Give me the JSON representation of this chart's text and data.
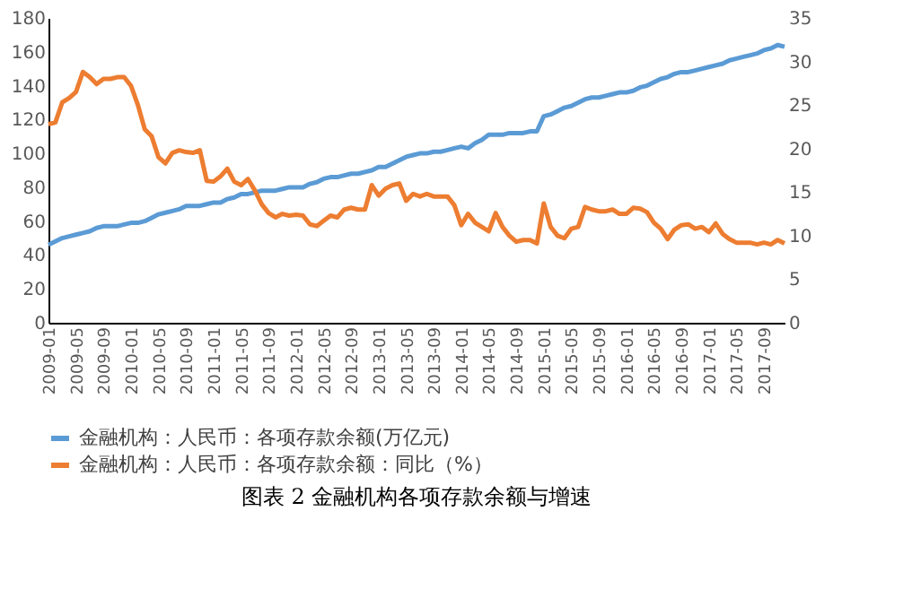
{
  "chart_data": {
    "type": "line",
    "categories": [
      "2009-01",
      null,
      null,
      null,
      "2009-05",
      null,
      null,
      null,
      "2009-09",
      null,
      null,
      null,
      "2010-01",
      null,
      null,
      null,
      "2010-05",
      null,
      null,
      null,
      "2010-09",
      null,
      null,
      null,
      "2011-01",
      null,
      null,
      null,
      "2011-05",
      null,
      null,
      null,
      "2011-09",
      null,
      null,
      null,
      "2012-01",
      null,
      null,
      null,
      "2012-05",
      null,
      null,
      null,
      "2012-09",
      null,
      null,
      null,
      "2013-01",
      null,
      null,
      null,
      "2013-05",
      null,
      null,
      null,
      "2013-09",
      null,
      null,
      null,
      "2014-01",
      null,
      null,
      null,
      "2014-05",
      null,
      null,
      null,
      "2014-09",
      null,
      null,
      null,
      "2015-01",
      null,
      null,
      null,
      "2015-05",
      null,
      null,
      null,
      "2015-09",
      null,
      null,
      null,
      "2016-01",
      null,
      null,
      null,
      "2016-05",
      null,
      null,
      null,
      "2016-09",
      null,
      null,
      null,
      "2017-01",
      null,
      null,
      null,
      "2017-05",
      null,
      null,
      null,
      "2017-09",
      null,
      null,
      null
    ],
    "series": [
      {
        "name": "金融机构：人民币：各项存款余额(万亿元)",
        "color": "#5b9bd5",
        "values": [
          46,
          48,
          50,
          51,
          52,
          53,
          54,
          56,
          57,
          57,
          57,
          58,
          59,
          59,
          60,
          62,
          64,
          65,
          66,
          67,
          69,
          69,
          69,
          70,
          71,
          71,
          73,
          74,
          76,
          76,
          77,
          78,
          78,
          78,
          79,
          80,
          80,
          80,
          82,
          83,
          85,
          86,
          86,
          87,
          88,
          88,
          89,
          90,
          92,
          92,
          94,
          96,
          98,
          99,
          100,
          100,
          101,
          101,
          102,
          103,
          104,
          103,
          106,
          108,
          111,
          111,
          111,
          112,
          112,
          112,
          113,
          113,
          122,
          123,
          125,
          127,
          128,
          130,
          132,
          133,
          133,
          134,
          135,
          136,
          136,
          137,
          139,
          140,
          142,
          144,
          145,
          147,
          148,
          148,
          149,
          150,
          151,
          152,
          153,
          155,
          156,
          157,
          158,
          159,
          161,
          162,
          164,
          163
        ]
      },
      {
        "name": "金融机构：人民币：各项存款余额：同比（%）",
        "color": "#ed7d31",
        "axis": "y2",
        "values": [
          22.8,
          23,
          25.3,
          25.8,
          26.5,
          28.8,
          28.2,
          27.4,
          28,
          28,
          28.2,
          28.2,
          27.2,
          25,
          22.2,
          21.4,
          19,
          18.3,
          19.5,
          19.8,
          19.6,
          19.5,
          19.8,
          16.3,
          16.2,
          16.8,
          17.7,
          16.2,
          15.8,
          16.5,
          15.2,
          13.6,
          12.6,
          12.1,
          12.5,
          12.3,
          12.4,
          12.3,
          11.3,
          11.1,
          11.7,
          12.3,
          12.1,
          13,
          13.2,
          13,
          13,
          15.8,
          14.6,
          15.4,
          15.8,
          16,
          14,
          14.8,
          14.5,
          14.8,
          14.5,
          14.5,
          14.5,
          13.5,
          11.2,
          12.5,
          11.5,
          11,
          10.5,
          12.6,
          11,
          10,
          9.3,
          9.5,
          9.5,
          9.1,
          13.7,
          11,
          10,
          9.7,
          10.8,
          11,
          13.3,
          13,
          12.8,
          12.8,
          13,
          12.5,
          12.5,
          13.2,
          13.1,
          12.7,
          11.5,
          10.8,
          9.6,
          10.7,
          11.2,
          11.3,
          10.8,
          11,
          10.4,
          11.4,
          10.2,
          9.6,
          9.2,
          9.2,
          9.2,
          9,
          9.2,
          9,
          9.5,
          9.1
        ]
      }
    ],
    "ylim": [
      0,
      180
    ],
    "yticks": [
      0,
      20,
      40,
      60,
      80,
      100,
      120,
      140,
      160,
      180
    ],
    "y2lim": [
      0,
      35
    ],
    "y2ticks": [
      0,
      5,
      10,
      15,
      20,
      25,
      30,
      35
    ],
    "legend": "bottom",
    "annotations": [
      "图表 2 金融机构各项存款余额与增速"
    ]
  }
}
